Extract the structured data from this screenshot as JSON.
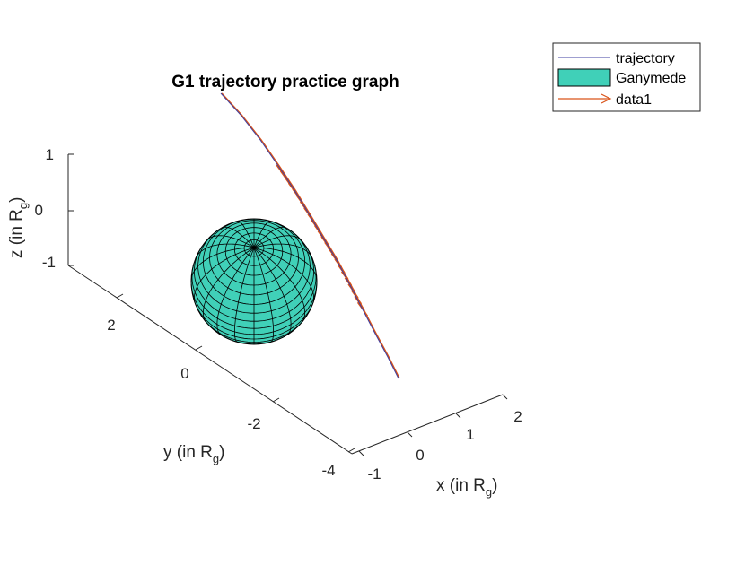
{
  "chart_data": {
    "type": "line",
    "title": "G1 trajectory practice graph",
    "xlabel": {
      "text": "x (in R",
      "sub": "g",
      "close": ")"
    },
    "ylabel": {
      "text": "y (in R",
      "sub": "g",
      "close": ")"
    },
    "zlabel": {
      "text": "z (in R",
      "sub": "g",
      "close": ")"
    },
    "x_ticks": [
      "-1",
      "0",
      "1",
      "2"
    ],
    "y_ticks": [
      "-4",
      "-2",
      "0",
      "2"
    ],
    "z_ticks": [
      "-1",
      "0",
      "1"
    ],
    "legend_position": "top-right",
    "legend": [
      {
        "label": "trajectory",
        "kind": "line",
        "color": "#3f3fa0"
      },
      {
        "label": "Ganymede",
        "kind": "patch",
        "color": "#40d0b8"
      },
      {
        "label": "data1",
        "kind": "arrow",
        "color": "#d95319"
      }
    ],
    "series": [
      {
        "name": "trajectory",
        "x": [
          -1.2,
          -0.8,
          -0.5,
          -0.2,
          0.05,
          0.3,
          0.6,
          0.9,
          1.2,
          1.5
        ],
        "y": [
          3.6,
          2.8,
          2.1,
          1.4,
          0.8,
          0.1,
          -0.6,
          -1.3,
          -2.0,
          -2.7
        ],
        "z": [
          1.9,
          1.45,
          1.05,
          0.7,
          0.4,
          0.1,
          -0.2,
          -0.5,
          -0.8,
          -1.1
        ]
      }
    ],
    "sphere": {
      "name": "Ganymede",
      "radius": 1,
      "center": [
        0,
        0,
        0
      ]
    }
  }
}
